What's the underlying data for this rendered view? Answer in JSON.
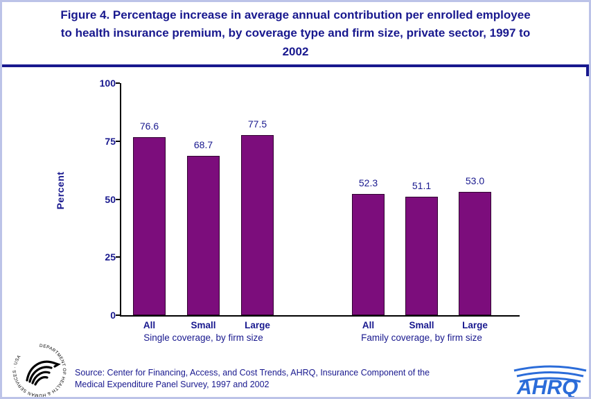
{
  "header": {
    "title": "Figure 4. Percentage increase in average annual contribution per enrolled employee to health insurance premium, by coverage type and firm size, private sector, 1997 to 2002"
  },
  "chart_data": {
    "type": "bar",
    "title": "Percentage increase in average annual contribution per enrolled employee to health insurance premium, by coverage type and firm size, private sector, 1997 to 2002",
    "ylabel": "Percent",
    "xlabel": "",
    "ylim": [
      0,
      100
    ],
    "y_ticks": [
      0,
      25,
      50,
      75,
      100
    ],
    "grid": "off",
    "legend": "none",
    "groups": [
      {
        "name": "Single coverage, by firm size",
        "categories": [
          "All",
          "Small",
          "Large"
        ],
        "values": [
          76.6,
          68.7,
          77.5
        ],
        "value_labels": [
          "76.6",
          "68.7",
          "77.5"
        ]
      },
      {
        "name": "Family coverage, by firm size",
        "categories": [
          "All",
          "Small",
          "Large"
        ],
        "values": [
          52.3,
          51.1,
          53.0
        ],
        "value_labels": [
          "52.3",
          "51.1",
          "53.0"
        ]
      }
    ]
  },
  "footer": {
    "source_line1": "Source: Center for Financing, Access, and Cost Trends, AHRQ, Insurance Component of the",
    "source_line2": "Medical Expenditure Panel Survey, 1997 and 2002",
    "hhs_logo_text": "DEPARTMENT OF HEALTH & HUMAN SERVICES · USA",
    "ahrq_text": "AHRQ"
  },
  "colors": {
    "navy": "#18188e",
    "purple": "#7c0d7c",
    "ahrq_blue": "#2b6cd9",
    "frame": "#bcc3e8"
  }
}
